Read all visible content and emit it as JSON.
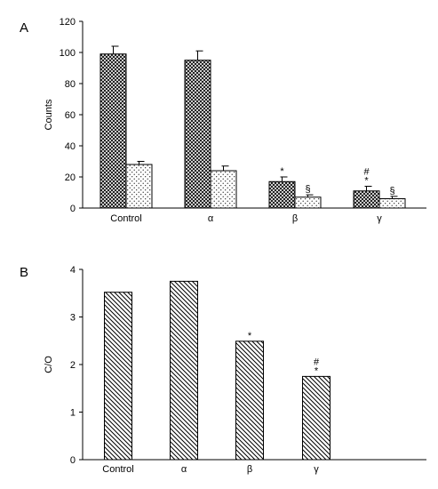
{
  "chart_data": [
    {
      "panel_label": "A",
      "type": "bar",
      "categories": [
        "Control",
        "α",
        "β",
        "γ"
      ],
      "ylabel": "Counts",
      "ylim": [
        0,
        120
      ],
      "yticks": [
        0,
        20,
        40,
        60,
        80,
        100,
        120
      ],
      "grid": false,
      "series": [
        {
          "pattern": "crosshatch",
          "values": [
            99,
            95,
            17,
            11
          ],
          "errors": [
            5,
            6,
            3,
            3
          ],
          "annotations": [
            [],
            [],
            [
              "*"
            ],
            [
              "*",
              "#"
            ]
          ]
        },
        {
          "pattern": "dots",
          "values": [
            28,
            24,
            7,
            6
          ],
          "errors": [
            2,
            3,
            1.5,
            1.5
          ],
          "annotations": [
            [],
            [],
            [
              "§"
            ],
            [
              "§"
            ]
          ]
        }
      ]
    },
    {
      "panel_label": "B",
      "type": "bar",
      "categories": [
        "Control",
        "α",
        "β",
        "γ"
      ],
      "ylabel": "C/O",
      "ylim": [
        0,
        4
      ],
      "yticks": [
        0,
        1,
        2,
        3,
        4
      ],
      "grid": false,
      "series": [
        {
          "pattern": "diagonal",
          "values": [
            3.52,
            3.75,
            2.49,
            1.75
          ],
          "annotations": [
            [],
            [],
            [
              "*"
            ],
            [
              "*",
              "#"
            ]
          ]
        }
      ]
    }
  ]
}
